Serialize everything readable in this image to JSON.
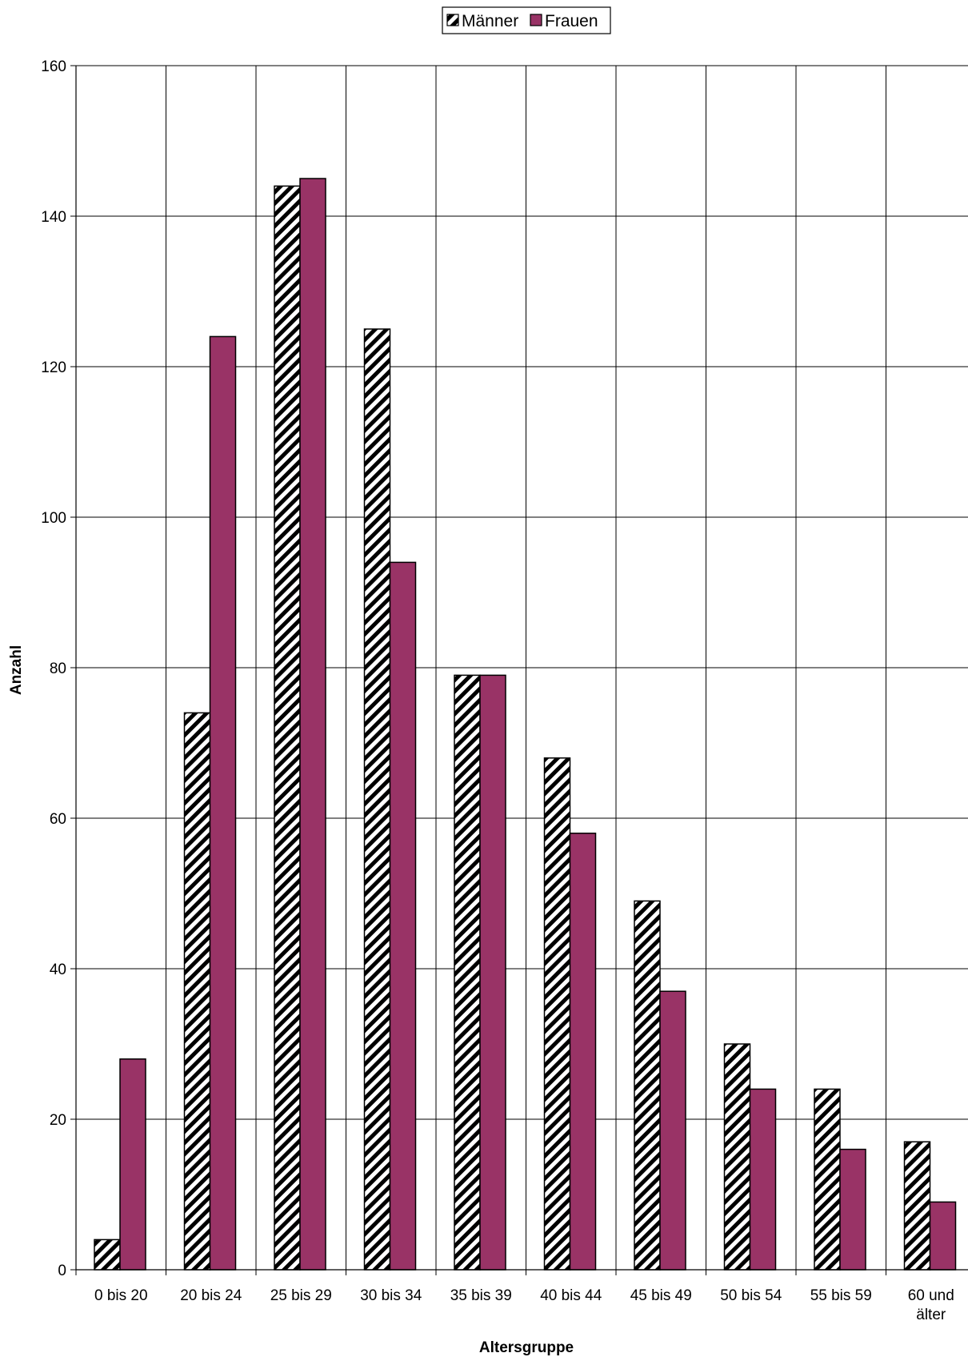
{
  "chart_data": {
    "type": "bar",
    "title": "",
    "xlabel": "Altersgruppe",
    "ylabel": "Anzahl",
    "ylim": [
      0,
      160
    ],
    "yticks": [
      0,
      20,
      40,
      60,
      80,
      100,
      120,
      140,
      160
    ],
    "grid": true,
    "legend_position": "top-center",
    "categories": [
      [
        "0 bis 20"
      ],
      [
        "20 bis 24"
      ],
      [
        "25 bis 29"
      ],
      [
        "30 bis 34"
      ],
      [
        "35 bis 39"
      ],
      [
        "40 bis 44"
      ],
      [
        "45 bis 49"
      ],
      [
        "50 bis 54"
      ],
      [
        "55 bis 59"
      ],
      [
        "60 und",
        "älter"
      ]
    ],
    "series": [
      {
        "name": "Männer",
        "pattern": "hatched",
        "color": "#000000",
        "values": [
          4,
          74,
          144,
          125,
          79,
          68,
          49,
          30,
          24,
          17
        ]
      },
      {
        "name": "Frauen",
        "pattern": "solid",
        "color": "#993366",
        "values": [
          28,
          124,
          145,
          94,
          79,
          58,
          37,
          24,
          16,
          9
        ]
      }
    ]
  }
}
